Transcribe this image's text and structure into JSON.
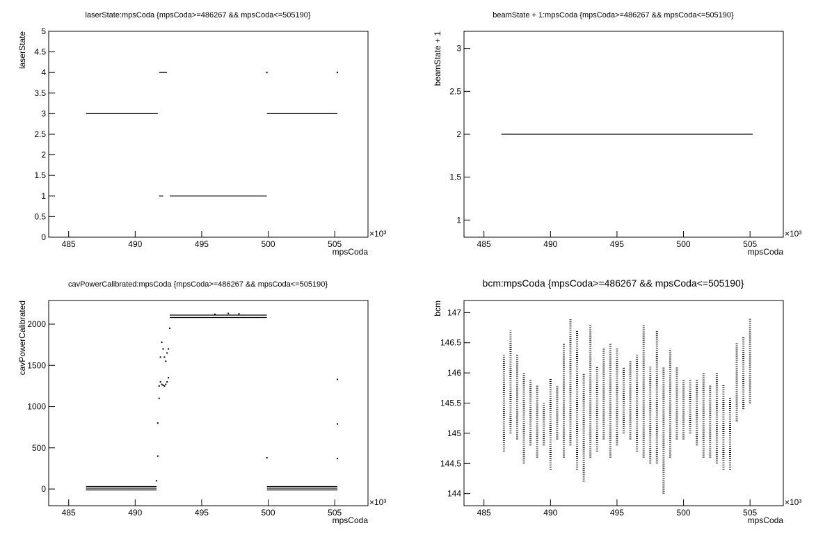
{
  "chart_data": [
    {
      "type": "scatter",
      "title": "laserState:mpsCoda {mpsCoda>=486267 && mpsCoda<=505190}",
      "x_label": "mpsCoda",
      "y_label": "laserState",
      "x_exponent": "×10³",
      "xlim": [
        483.5,
        507.5
      ],
      "xticks": [
        485,
        490,
        495,
        500,
        505
      ],
      "ylim": [
        0,
        5
      ],
      "yticks": [
        0,
        0.5,
        1,
        1.5,
        2,
        2.5,
        3,
        3.5,
        4,
        4.5,
        5
      ],
      "segments": {
        "x_start": [
          486.3,
          491.8,
          491.8,
          492.6,
          499.9
        ],
        "x_end": [
          491.7,
          492.4,
          492.1,
          499.9,
          505.2
        ],
        "y": [
          3,
          4,
          1,
          1,
          3
        ]
      },
      "points": {
        "x": [
          499.9,
          505.2
        ],
        "y": [
          4,
          4
        ]
      }
    },
    {
      "type": "scatter",
      "title": "beamState + 1:mpsCoda {mpsCoda>=486267 && mpsCoda<=505190}",
      "x_label": "mpsCoda",
      "y_label": "beamState + 1",
      "x_exponent": "×10³",
      "xlim": [
        483.5,
        507.5
      ],
      "xticks": [
        485,
        490,
        495,
        500,
        505
      ],
      "ylim": [
        0.8,
        3.2
      ],
      "yticks": [
        1,
        1.5,
        2,
        2.5,
        3
      ],
      "segments": {
        "x_start": [
          486.3
        ],
        "x_end": [
          505.2
        ],
        "y": [
          2
        ]
      }
    },
    {
      "type": "scatter",
      "title": "cavPowerCalibrated:mpsCoda {mpsCoda>=486267 && mpsCoda<=505190}",
      "x_label": "mpsCoda",
      "y_label": "cavPowerCalibrated",
      "x_exponent": "×10³",
      "xlim": [
        483.5,
        507.5
      ],
      "xticks": [
        485,
        490,
        495,
        500,
        505
      ],
      "ylim": [
        -202,
        2287
      ],
      "yticks": [
        0,
        500,
        1000,
        1500,
        2000
      ],
      "segments": {
        "x_start": [
          486.3,
          486.3,
          486.3,
          492.6,
          492.6,
          499.9,
          499.9,
          499.9
        ],
        "x_end": [
          491.6,
          491.6,
          491.6,
          499.9,
          499.9,
          505.2,
          505.2,
          505.2
        ],
        "y": [
          -10,
          10,
          30,
          2080,
          2110,
          -10,
          10,
          30
        ]
      },
      "points": {
        "x": [
          491.6,
          491.7,
          491.7,
          491.8,
          491.8,
          491.9,
          492.0,
          492.1,
          492.2,
          492.3,
          492.4,
          492.5,
          491.9,
          492.0,
          492.1,
          492.2,
          492.3,
          492.4,
          492.5,
          492.6,
          499.9,
          505.2,
          505.2,
          505.2,
          496.0,
          497.0,
          497.8
        ],
        "y": [
          100,
          400,
          800,
          1100,
          1250,
          1300,
          1270,
          1260,
          1250,
          1270,
          1300,
          1350,
          1600,
          1780,
          1700,
          1600,
          1550,
          1650,
          1700,
          1950,
          380,
          1330,
          790,
          370,
          2120,
          2130,
          2125
        ]
      }
    },
    {
      "type": "scatter",
      "title": "bcm:mpsCoda {mpsCoda>=486267 && mpsCoda<=505190}",
      "x_label": "mpsCoda",
      "y_label": "bcm",
      "x_exponent": "×10³",
      "xlim": [
        483.5,
        507.5
      ],
      "xticks": [
        485,
        490,
        495,
        500,
        505
      ],
      "ylim": [
        143.8,
        147.2
      ],
      "yticks": [
        144,
        144.5,
        145,
        145.5,
        146,
        146.5,
        147
      ],
      "ranges": {
        "x": [
          486.5,
          487,
          487.5,
          488,
          488.5,
          489,
          489.5,
          490,
          490.5,
          491,
          491.5,
          492,
          492.5,
          493,
          493.5,
          494,
          494.5,
          495,
          495.5,
          496,
          496.5,
          497,
          497.5,
          498,
          498.5,
          499,
          499.5,
          500,
          500.5,
          501,
          501.5,
          502,
          502.5,
          503,
          503.5,
          504,
          504.5,
          505
        ],
        "low": [
          144.7,
          145.0,
          144.9,
          144.5,
          144.8,
          144.6,
          144.8,
          144.4,
          144.9,
          144.6,
          144.8,
          144.4,
          144.2,
          144.6,
          144.7,
          144.9,
          144.6,
          144.8,
          145.0,
          144.9,
          144.7,
          144.6,
          144.5,
          144.5,
          144.0,
          144.6,
          144.9,
          144.9,
          145.0,
          144.8,
          144.6,
          144.6,
          144.5,
          144.4,
          144.4,
          145.2,
          145.4,
          145.5
        ],
        "high": [
          146.3,
          146.7,
          146.3,
          146.0,
          145.9,
          145.8,
          145.5,
          145.9,
          145.8,
          146.5,
          146.9,
          146.7,
          146.0,
          146.8,
          146.1,
          146.4,
          146.5,
          146.4,
          146.1,
          146.2,
          146.3,
          146.8,
          146.1,
          146.7,
          146.1,
          146.4,
          146.1,
          145.9,
          145.9,
          145.9,
          146.0,
          145.8,
          146.0,
          145.8,
          145.6,
          146.5,
          146.6,
          146.9
        ]
      }
    }
  ]
}
